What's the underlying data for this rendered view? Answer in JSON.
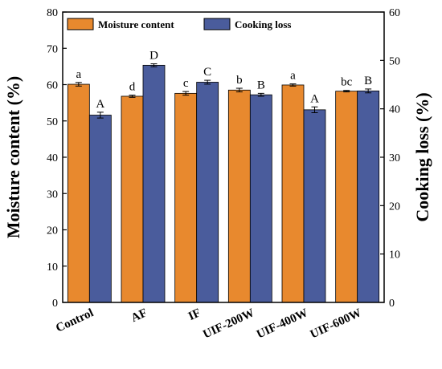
{
  "chart_data": {
    "type": "bar",
    "categories": [
      "Control",
      "AF",
      "IF",
      "UIF-200W",
      "UIF-400W",
      "UIF-600W"
    ],
    "series": [
      {
        "name": "Moisture content",
        "axis": "left",
        "color": "#E8892E",
        "values": [
          60.1,
          56.8,
          57.6,
          58.5,
          59.9,
          58.2
        ],
        "errors": [
          0.5,
          0.3,
          0.5,
          0.5,
          0.3,
          0.2
        ],
        "labels": [
          "a",
          "d",
          "c",
          "b",
          "a",
          "bc"
        ]
      },
      {
        "name": "Cooking loss",
        "axis": "right",
        "color": "#4A5C9C",
        "values": [
          38.7,
          49.0,
          45.5,
          42.9,
          39.8,
          43.7
        ],
        "errors": [
          0.6,
          0.3,
          0.4,
          0.3,
          0.6,
          0.4
        ],
        "labels": [
          "A",
          "D",
          "C",
          "B",
          "A",
          "B"
        ]
      }
    ],
    "ylabel": "Moisture content (%)",
    "ylabel_right": "Cooking loss (%)",
    "ylim": [
      0,
      80
    ],
    "ylim_right": [
      0,
      60
    ],
    "yticks": [
      0,
      10,
      20,
      30,
      40,
      50,
      60,
      70,
      80
    ],
    "yticks_right": [
      0,
      10,
      20,
      30,
      40,
      50,
      60
    ],
    "legend_position": "top-left",
    "grid": false
  }
}
